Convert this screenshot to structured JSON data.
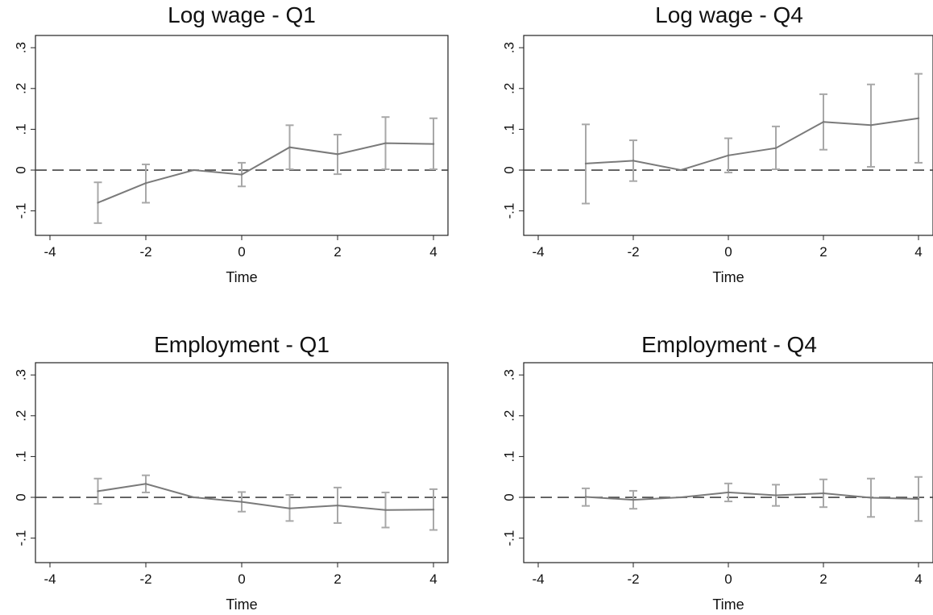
{
  "chart_data": [
    {
      "type": "line",
      "title": "Log wage - Q1",
      "xlabel": "Time",
      "ylabel": "",
      "xlim": [
        -4,
        4
      ],
      "ylim": [
        -0.16,
        0.33
      ],
      "xticks": [
        -4,
        -2,
        0,
        2,
        4
      ],
      "xtick_labels": [
        "-4",
        "-2",
        "0",
        "2",
        "4"
      ],
      "yticks": [
        -0.1,
        0,
        0.1,
        0.2,
        0.3
      ],
      "ytick_labels": [
        "-.1",
        "0",
        ".1",
        ".2",
        ".3"
      ],
      "reference_line_y": 0,
      "grid": false,
      "x": [
        -3,
        -2,
        -1,
        0,
        1,
        2,
        3,
        4
      ],
      "y": [
        -0.08,
        -0.032,
        0,
        -0.011,
        0.056,
        0.039,
        0.066,
        0.064
      ],
      "ci_low": [
        -0.13,
        -0.08,
        0,
        -0.04,
        0.002,
        -0.01,
        0.002,
        0.002
      ],
      "ci_high": [
        -0.03,
        0.014,
        0,
        0.018,
        0.11,
        0.087,
        0.13,
        0.127
      ]
    },
    {
      "type": "line",
      "title": "Log wage - Q4",
      "xlabel": "Time",
      "ylabel": "",
      "xlim": [
        -4,
        4
      ],
      "ylim": [
        -0.16,
        0.33
      ],
      "xticks": [
        -4,
        -2,
        0,
        2,
        4
      ],
      "xtick_labels": [
        "-4",
        "-2",
        "0",
        "2",
        "4"
      ],
      "yticks": [
        -0.1,
        0,
        0.1,
        0.2,
        0.3
      ],
      "ytick_labels": [
        "-.1",
        "0",
        ".1",
        ".2",
        ".3"
      ],
      "reference_line_y": 0,
      "grid": false,
      "x": [
        -3,
        -2,
        -1,
        0,
        1,
        2,
        3,
        4
      ],
      "y": [
        0.016,
        0.023,
        0,
        0.036,
        0.054,
        0.118,
        0.11,
        0.127
      ],
      "ci_low": [
        -0.082,
        -0.027,
        0,
        -0.006,
        0.002,
        0.05,
        0.008,
        0.018
      ],
      "ci_high": [
        0.112,
        0.073,
        0,
        0.078,
        0.107,
        0.186,
        0.21,
        0.236
      ]
    },
    {
      "type": "line",
      "title": "Employment - Q1",
      "xlabel": "Time",
      "ylabel": "",
      "xlim": [
        -4,
        4
      ],
      "ylim": [
        -0.16,
        0.33
      ],
      "xticks": [
        -4,
        -2,
        0,
        2,
        4
      ],
      "xtick_labels": [
        "-4",
        "-2",
        "0",
        "2",
        "4"
      ],
      "yticks": [
        -0.1,
        0,
        0.1,
        0.2,
        0.3
      ],
      "ytick_labels": [
        "-.1",
        "0",
        ".1",
        ".2",
        ".3"
      ],
      "reference_line_y": 0,
      "grid": false,
      "x": [
        -3,
        -2,
        -1,
        0,
        1,
        2,
        3,
        4
      ],
      "y": [
        0.015,
        0.033,
        0,
        -0.011,
        -0.027,
        -0.02,
        -0.031,
        -0.03
      ],
      "ci_low": [
        -0.016,
        0.012,
        0,
        -0.035,
        -0.058,
        -0.063,
        -0.074,
        -0.08
      ],
      "ci_high": [
        0.046,
        0.054,
        0,
        0.013,
        0.006,
        0.024,
        0.012,
        0.02
      ]
    },
    {
      "type": "line",
      "title": "Employment - Q4",
      "xlabel": "Time",
      "ylabel": "",
      "xlim": [
        -4,
        4
      ],
      "ylim": [
        -0.16,
        0.33
      ],
      "xticks": [
        -4,
        -2,
        0,
        2,
        4
      ],
      "xtick_labels": [
        "-4",
        "-2",
        "0",
        "2",
        "4"
      ],
      "yticks": [
        -0.1,
        0,
        0.1,
        0.2,
        0.3
      ],
      "ytick_labels": [
        "-.1",
        "0",
        ".1",
        ".2",
        ".3"
      ],
      "reference_line_y": 0,
      "grid": false,
      "x": [
        -3,
        -2,
        -1,
        0,
        1,
        2,
        3,
        4
      ],
      "y": [
        0.001,
        -0.006,
        0,
        0.012,
        0.005,
        0.01,
        -0.001,
        -0.004
      ],
      "ci_low": [
        -0.021,
        -0.028,
        0,
        -0.01,
        -0.021,
        -0.024,
        -0.048,
        -0.058
      ],
      "ci_high": [
        0.022,
        0.016,
        0,
        0.034,
        0.031,
        0.044,
        0.046,
        0.05
      ]
    }
  ],
  "colors": {
    "series_line": "#7a7a7a",
    "ci_bar": "#a8a8a8",
    "zero_line": "#444444",
    "frame": "#222222",
    "text": "#111111"
  }
}
